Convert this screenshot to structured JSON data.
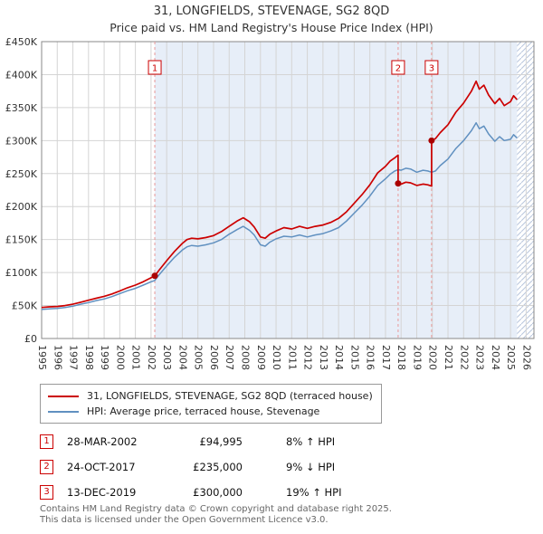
{
  "chart_data": {
    "type": "line",
    "title": "31, LONGFIELDS, STEVENAGE, SG2 8QD",
    "subtitle": "Price paid vs. HM Land Registry's House Price Index (HPI)",
    "xlabel": "",
    "ylabel": "",
    "xlim": [
      1995,
      2026.5
    ],
    "ylim": [
      0,
      450000
    ],
    "grid": true,
    "legend_position": "bottom",
    "x_ticks": [
      1995,
      1996,
      1997,
      1998,
      1999,
      2000,
      2001,
      2002,
      2003,
      2004,
      2005,
      2006,
      2007,
      2008,
      2009,
      2010,
      2011,
      2012,
      2013,
      2014,
      2015,
      2016,
      2017,
      2018,
      2019,
      2020,
      2021,
      2022,
      2023,
      2024,
      2025,
      2026
    ],
    "y_ticks": [
      {
        "v": 0,
        "label": "£0"
      },
      {
        "v": 50000,
        "label": "£50K"
      },
      {
        "v": 100000,
        "label": "£100K"
      },
      {
        "v": 150000,
        "label": "£150K"
      },
      {
        "v": 200000,
        "label": "£200K"
      },
      {
        "v": 250000,
        "label": "£250K"
      },
      {
        "v": 300000,
        "label": "£300K"
      },
      {
        "v": 350000,
        "label": "£350K"
      },
      {
        "v": 400000,
        "label": "£400K"
      },
      {
        "v": 450000,
        "label": "£450K"
      }
    ],
    "shaded_from": 2002.24,
    "hatch_from": 2025.42,
    "colors": {
      "red": "#cc0000",
      "blue": "#6090c0",
      "shaded": "#e7eef8",
      "dashed": "#e89999",
      "grid": "#d4d4d4",
      "border": "#888888",
      "hatch_line": "#b9c6dd",
      "marker": "#aa0000"
    },
    "series": [
      {
        "name": "31, LONGFIELDS, STEVENAGE, SG2 8QD (terraced house)",
        "color": "#cc0000",
        "points": [
          [
            1995.0,
            47000
          ],
          [
            1995.5,
            48000
          ],
          [
            1996.0,
            48500
          ],
          [
            1996.5,
            50000
          ],
          [
            1997.0,
            52000
          ],
          [
            1997.5,
            55000
          ],
          [
            1998.0,
            58000
          ],
          [
            1998.5,
            61000
          ],
          [
            1999.0,
            64000
          ],
          [
            1999.5,
            67500
          ],
          [
            2000.0,
            72000
          ],
          [
            2000.5,
            77000
          ],
          [
            2001.0,
            81000
          ],
          [
            2001.5,
            86000
          ],
          [
            2002.0,
            92000
          ],
          [
            2002.24,
            94995
          ],
          [
            2002.5,
            103000
          ],
          [
            2003.0,
            118000
          ],
          [
            2003.5,
            132000
          ],
          [
            2004.0,
            144000
          ],
          [
            2004.3,
            150000
          ],
          [
            2004.6,
            152000
          ],
          [
            2005.0,
            151000
          ],
          [
            2005.5,
            153000
          ],
          [
            2006.0,
            156000
          ],
          [
            2006.5,
            162000
          ],
          [
            2007.0,
            170000
          ],
          [
            2007.5,
            178000
          ],
          [
            2007.9,
            183000
          ],
          [
            2008.3,
            177000
          ],
          [
            2008.6,
            169000
          ],
          [
            2009.0,
            154000
          ],
          [
            2009.3,
            152000
          ],
          [
            2009.6,
            158000
          ],
          [
            2010.0,
            163000
          ],
          [
            2010.5,
            168000
          ],
          [
            2011.0,
            166000
          ],
          [
            2011.5,
            170000
          ],
          [
            2012.0,
            167000
          ],
          [
            2012.5,
            170000
          ],
          [
            2013.0,
            172000
          ],
          [
            2013.5,
            176000
          ],
          [
            2014.0,
            182000
          ],
          [
            2014.5,
            192000
          ],
          [
            2015.0,
            205000
          ],
          [
            2015.5,
            218000
          ],
          [
            2016.0,
            233000
          ],
          [
            2016.5,
            251000
          ],
          [
            2017.0,
            261000
          ],
          [
            2017.3,
            269000
          ],
          [
            2017.6,
            274000
          ],
          [
            2017.81,
            278000
          ],
          [
            2017.81,
            235000
          ],
          [
            2018.0,
            234000
          ],
          [
            2018.3,
            237000
          ],
          [
            2018.6,
            236000
          ],
          [
            2019.0,
            232000
          ],
          [
            2019.4,
            234000
          ],
          [
            2019.7,
            233000
          ],
          [
            2019.95,
            231000
          ],
          [
            2019.95,
            300000
          ],
          [
            2020.2,
            303000
          ],
          [
            2020.5,
            312000
          ],
          [
            2021.0,
            324000
          ],
          [
            2021.5,
            343000
          ],
          [
            2022.0,
            357000
          ],
          [
            2022.5,
            375000
          ],
          [
            2022.8,
            390000
          ],
          [
            2023.0,
            378000
          ],
          [
            2023.3,
            384000
          ],
          [
            2023.6,
            369000
          ],
          [
            2024.0,
            356000
          ],
          [
            2024.3,
            364000
          ],
          [
            2024.6,
            353000
          ],
          [
            2025.0,
            359000
          ],
          [
            2025.2,
            368000
          ],
          [
            2025.42,
            362000
          ]
        ]
      },
      {
        "name": "HPI: Average price, terraced house, Stevenage",
        "color": "#6090c0",
        "points": [
          [
            1995.0,
            44000
          ],
          [
            1995.5,
            45000
          ],
          [
            1996.0,
            45500
          ],
          [
            1996.5,
            47000
          ],
          [
            1997.0,
            49000
          ],
          [
            1997.5,
            52000
          ],
          [
            1998.0,
            54500
          ],
          [
            1998.5,
            57500
          ],
          [
            1999.0,
            60000
          ],
          [
            1999.5,
            63500
          ],
          [
            2000.0,
            68000
          ],
          [
            2000.5,
            72500
          ],
          [
            2001.0,
            76000
          ],
          [
            2001.5,
            81000
          ],
          [
            2002.0,
            86000
          ],
          [
            2002.24,
            88000
          ],
          [
            2002.5,
            96000
          ],
          [
            2003.0,
            110000
          ],
          [
            2003.5,
            123000
          ],
          [
            2004.0,
            134000
          ],
          [
            2004.3,
            139000
          ],
          [
            2004.6,
            141000
          ],
          [
            2005.0,
            140000
          ],
          [
            2005.5,
            142000
          ],
          [
            2006.0,
            145000
          ],
          [
            2006.5,
            150000
          ],
          [
            2007.0,
            158000
          ],
          [
            2007.5,
            165000
          ],
          [
            2007.9,
            170000
          ],
          [
            2008.3,
            164000
          ],
          [
            2008.6,
            157000
          ],
          [
            2009.0,
            142000
          ],
          [
            2009.3,
            140000
          ],
          [
            2009.6,
            146000
          ],
          [
            2010.0,
            151000
          ],
          [
            2010.5,
            155000
          ],
          [
            2011.0,
            154000
          ],
          [
            2011.5,
            157000
          ],
          [
            2012.0,
            154000
          ],
          [
            2012.5,
            157000
          ],
          [
            2013.0,
            159000
          ],
          [
            2013.5,
            163000
          ],
          [
            2014.0,
            168000
          ],
          [
            2014.5,
            178000
          ],
          [
            2015.0,
            190000
          ],
          [
            2015.5,
            202000
          ],
          [
            2016.0,
            216000
          ],
          [
            2016.5,
            232000
          ],
          [
            2017.0,
            242000
          ],
          [
            2017.3,
            249000
          ],
          [
            2017.6,
            254000
          ],
          [
            2017.81,
            256000
          ],
          [
            2018.0,
            255000
          ],
          [
            2018.3,
            258000
          ],
          [
            2018.6,
            257000
          ],
          [
            2019.0,
            252000
          ],
          [
            2019.4,
            255000
          ],
          [
            2019.7,
            254000
          ],
          [
            2019.95,
            252000
          ],
          [
            2020.2,
            254000
          ],
          [
            2020.5,
            262000
          ],
          [
            2021.0,
            272000
          ],
          [
            2021.5,
            288000
          ],
          [
            2022.0,
            300000
          ],
          [
            2022.5,
            315000
          ],
          [
            2022.8,
            327000
          ],
          [
            2023.0,
            318000
          ],
          [
            2023.3,
            322000
          ],
          [
            2023.6,
            310000
          ],
          [
            2024.0,
            299000
          ],
          [
            2024.3,
            306000
          ],
          [
            2024.6,
            300000
          ],
          [
            2025.0,
            302000
          ],
          [
            2025.2,
            309000
          ],
          [
            2025.42,
            304000
          ]
        ]
      }
    ],
    "sales": [
      {
        "n": "1",
        "x": 2002.24,
        "price": 94995
      },
      {
        "n": "2",
        "x": 2017.81,
        "price": 235000
      },
      {
        "n": "3",
        "x": 2019.95,
        "price": 300000
      }
    ]
  },
  "transactions": [
    {
      "num": "1",
      "date": "28-MAR-2002",
      "price": "£94,995",
      "hpi": "8% ↑ HPI"
    },
    {
      "num": "2",
      "date": "24-OCT-2017",
      "price": "£235,000",
      "hpi": "9% ↓ HPI"
    },
    {
      "num": "3",
      "date": "13-DEC-2019",
      "price": "£300,000",
      "hpi": "19% ↑ HPI"
    }
  ],
  "footer": {
    "line1": "Contains HM Land Registry data © Crown copyright and database right 2025.",
    "line2": "This data is licensed under the Open Government Licence v3.0."
  }
}
